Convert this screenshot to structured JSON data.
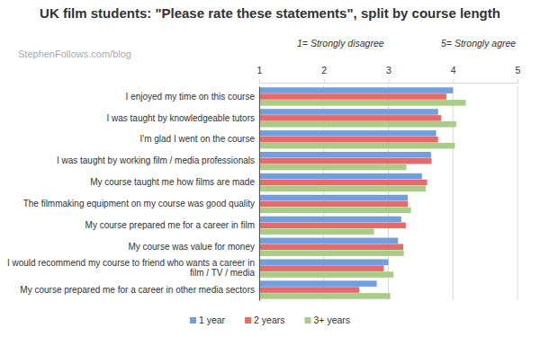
{
  "chart_data": {
    "type": "bar",
    "orientation": "horizontal",
    "title": "UK film students: \"Please rate these statements\", split by course length",
    "annotations": [
      "StephenFollows.com/blog",
      "1= Strongly disagree",
      "5= Strongly agree"
    ],
    "categories": [
      "I enjoyed my time on this course",
      "I was taught by knowledgeable tutors",
      "I'm glad I went on the course",
      "I was taught by working film / media professionals",
      "My course taught me how films are made",
      "The filmmaking equipment on my course was good quality",
      "My course prepared me for a career in film",
      "My course was value for money",
      "I would recommend my course to friend who wants a career in film / TV / media",
      "My course prepared me for a career in other media sectors"
    ],
    "series": [
      {
        "name": "1 year",
        "color": "#6f9fe0",
        "values": [
          4.0,
          3.77,
          3.74,
          3.66,
          3.52,
          3.3,
          3.2,
          3.15,
          3.0,
          2.82
        ]
      },
      {
        "name": "2 years",
        "color": "#e46b69",
        "values": [
          3.9,
          3.82,
          3.77,
          3.67,
          3.6,
          3.3,
          3.27,
          3.23,
          2.93,
          2.55
        ]
      },
      {
        "name": "3+ years",
        "color": "#a9cc86",
        "values": [
          4.2,
          4.05,
          4.03,
          3.28,
          3.58,
          3.35,
          2.78,
          3.24,
          3.08,
          3.03
        ]
      }
    ],
    "xlim": [
      1,
      5
    ],
    "xticks": [
      1,
      2,
      3,
      4,
      5
    ],
    "grid": true,
    "legend": "bottom"
  }
}
